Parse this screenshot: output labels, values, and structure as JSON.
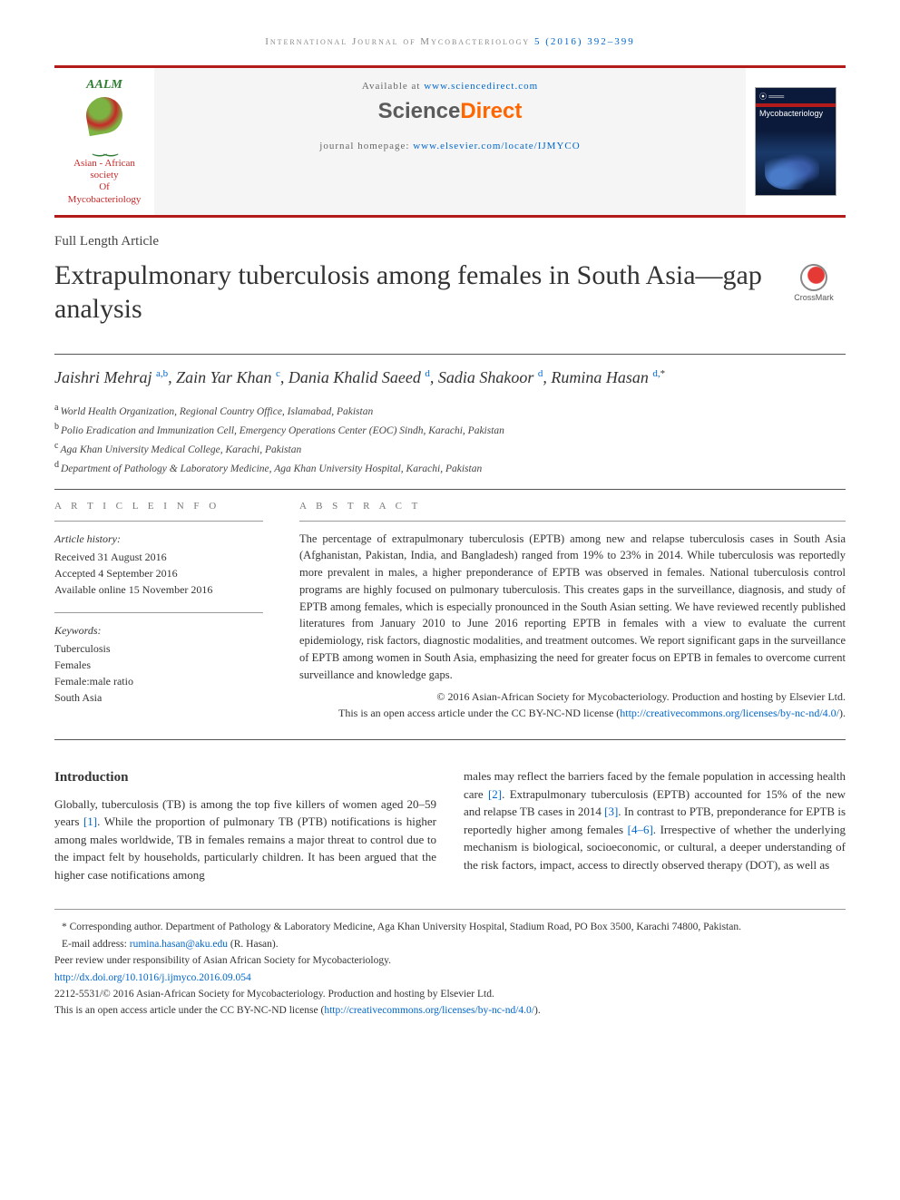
{
  "running_header": {
    "prefix": "International Journal of Mycobacteriology",
    "citation": " 5 (2016) 392–399"
  },
  "masthead": {
    "society_abbrev": "AALM",
    "society_line1": "Asian - African society",
    "society_line2": "Of Mycobacteriology",
    "available_prefix": "Available at ",
    "available_url": "www.sciencedirect.com",
    "sd_brand_a": "Science",
    "sd_brand_b": "Direct",
    "homepage_prefix": "journal homepage: ",
    "homepage_url": "www.elsevier.com/locate/IJMYCO",
    "cover_title": "Mycobacteriology"
  },
  "article_type": "Full Length Article",
  "title": "Extrapulmonary tuberculosis among females in South Asia—gap analysis",
  "crossmark_label": "CrossMark",
  "authors_html": "Jaishri Mehraj",
  "authors": [
    {
      "name": "Jaishri Mehraj",
      "sup": "a,b"
    },
    {
      "name": "Zain Yar Khan",
      "sup": "c"
    },
    {
      "name": "Dania Khalid Saeed",
      "sup": "d"
    },
    {
      "name": "Sadia Shakoor",
      "sup": "d"
    },
    {
      "name": "Rumina Hasan",
      "sup": "d,*",
      "corr": true
    }
  ],
  "affiliations": [
    {
      "sup": "a",
      "text": "World Health Organization, Regional Country Office, Islamabad, Pakistan"
    },
    {
      "sup": "b",
      "text": "Polio Eradication and Immunization Cell, Emergency Operations Center (EOC) Sindh, Karachi, Pakistan"
    },
    {
      "sup": "c",
      "text": "Aga Khan University Medical College, Karachi, Pakistan"
    },
    {
      "sup": "d",
      "text": "Department of Pathology & Laboratory Medicine, Aga Khan University Hospital, Karachi, Pakistan"
    }
  ],
  "info": {
    "label_info": "A R T I C L E   I N F O",
    "history_head": "Article history:",
    "received": "Received 31 August 2016",
    "accepted": "Accepted 4 September 2016",
    "online": "Available online 15 November 2016",
    "keywords_head": "Keywords:",
    "keywords": [
      "Tuberculosis",
      "Females",
      "Female:male ratio",
      "South Asia"
    ]
  },
  "abstract": {
    "label": "A B S T R A C T",
    "text": "The percentage of extrapulmonary tuberculosis (EPTB) among new and relapse tuberculosis cases in South Asia (Afghanistan, Pakistan, India, and Bangladesh) ranged from 19% to 23% in 2014. While tuberculosis was reportedly more prevalent in males, a higher preponderance of EPTB was observed in females. National tuberculosis control programs are highly focused on pulmonary tuberculosis. This creates gaps in the surveillance, diagnosis, and study of EPTB among females, which is especially pronounced in the South Asian setting. We have reviewed recently published literatures from January 2010 to June 2016 reporting EPTB in females with a view to evaluate the current epidemiology, risk factors, diagnostic modalities, and treatment outcomes. We report significant gaps in the surveillance of EPTB among women in South Asia, emphasizing the need for greater focus on EPTB in females to overcome current surveillance and knowledge gaps.",
    "copyright_line": "© 2016 Asian-African Society for Mycobacteriology. Production and hosting by Elsevier Ltd.",
    "license_prefix": "This is an open access article under the CC BY-NC-ND license (",
    "license_url": "http://creativecommons.org/licenses/by-nc-nd/4.0/",
    "license_suffix": ")."
  },
  "body": {
    "intro_heading": "Introduction",
    "col1": "Globally, tuberculosis (TB) is among the top five killers of women aged 20–59 years [1]. While the proportion of pulmonary TB (PTB) notifications is higher among males worldwide, TB in females remains a major threat to control due to the impact felt by households, particularly children. It has been argued that the higher case notifications among",
    "ref1": "[1]",
    "col2_a": "males may reflect the barriers faced by the female population in accessing health care ",
    "ref2": "[2]",
    "col2_b": ". Extrapulmonary tuberculosis (EPTB) accounted for 15% of the new and relapse TB cases in 2014 ",
    "ref3": "[3]",
    "col2_c": ". In contrast to PTB, preponderance for EPTB is reportedly higher among females ",
    "ref46": "[4–6]",
    "col2_d": ". Irrespective of whether the underlying mechanism is biological, socioeconomic, or cultural, a deeper understanding of the risk factors, impact, access to directly observed therapy (DOT), as well as"
  },
  "footnotes": {
    "corr_label": "* Corresponding author. Department of Pathology & Laboratory Medicine, Aga Khan University Hospital, Stadium Road, PO Box 3500, Karachi 74800, Pakistan.",
    "email_label": "E-mail address: ",
    "email": "rumina.hasan@aku.edu",
    "email_suffix": " (R. Hasan).",
    "peer": "Peer review under responsibility of Asian African Society for Mycobacteriology.",
    "doi": "http://dx.doi.org/10.1016/j.ijmyco.2016.09.054",
    "issn_line": "2212-5531/© 2016 Asian-African Society for Mycobacteriology. Production and hosting by Elsevier Ltd.",
    "license_prefix": "This is an open access article under the CC BY-NC-ND license (",
    "license_url": "http://creativecommons.org/licenses/by-nc-nd/4.0/",
    "license_suffix": ")."
  },
  "colors": {
    "rule": "#b31b1b",
    "link": "#0066cc",
    "sd_orange": "#ff6600"
  }
}
